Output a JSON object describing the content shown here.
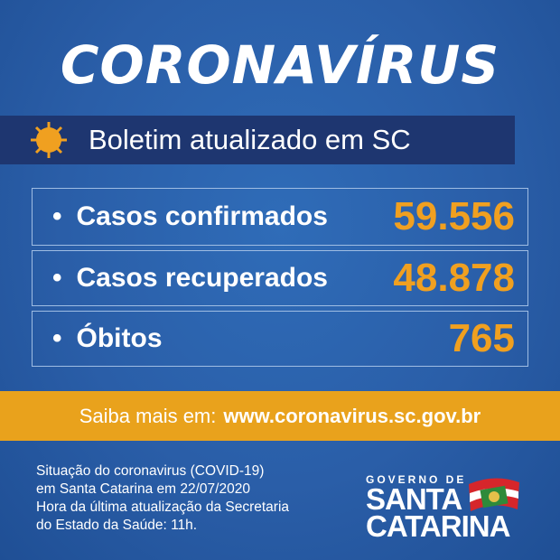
{
  "colors": {
    "background": "#2a5ea8",
    "banner": "#1e3670",
    "accent": "#e9a21c"
  },
  "title": "CORONAVÍRUS",
  "banner": {
    "icon": "virus-icon",
    "text": "Boletim atualizado em SC"
  },
  "stats": [
    {
      "label": "Casos confirmados",
      "value": "59.556"
    },
    {
      "label": "Casos recuperados",
      "value": "48.878"
    },
    {
      "label": "Óbitos",
      "value": "765"
    }
  ],
  "more": {
    "prefix": "Saiba mais em:",
    "url": "www.coronavirus.sc.gov.br"
  },
  "footer": [
    "Situação do coronavirus (COVID-19)",
    "em Santa Catarina em 22/07/2020",
    "Hora da última atualização da Secretaria",
    "do  Estado da Saúde: 11h."
  ],
  "logo": {
    "line1": "GOVERNO DE",
    "line2": "SANTA",
    "line3": "CATARINA"
  }
}
